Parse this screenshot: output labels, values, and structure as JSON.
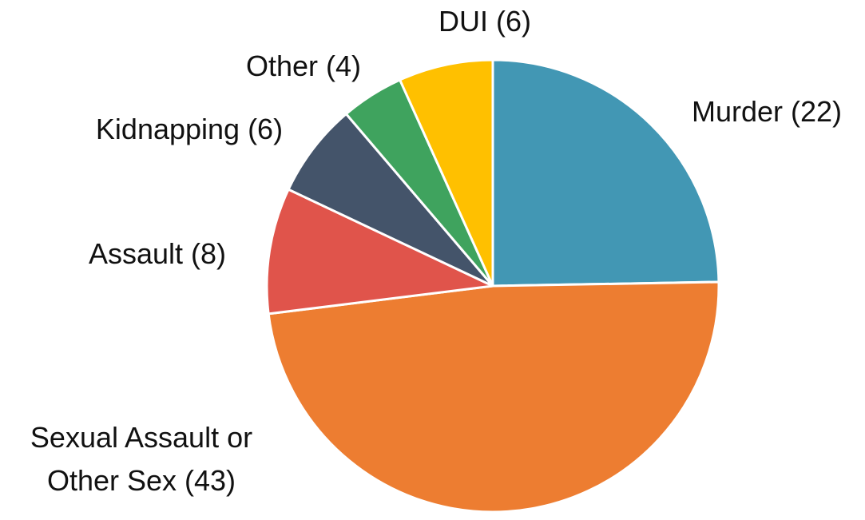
{
  "chart_data": {
    "type": "pie",
    "categories": [
      [
        "Murder (22)"
      ],
      [
        "Sexual Assault or",
        "Other Sex (43)"
      ],
      [
        "Assault (8)"
      ],
      [
        "Kidnapping (6)"
      ],
      [
        "Other (4)"
      ],
      [
        "DUI (6)"
      ]
    ],
    "values": [
      22,
      43,
      8,
      6,
      4,
      6
    ],
    "colors": [
      "#4297b4",
      "#ed7d31",
      "#e0544b",
      "#44546a",
      "#3fa35e",
      "#ffc000"
    ]
  }
}
